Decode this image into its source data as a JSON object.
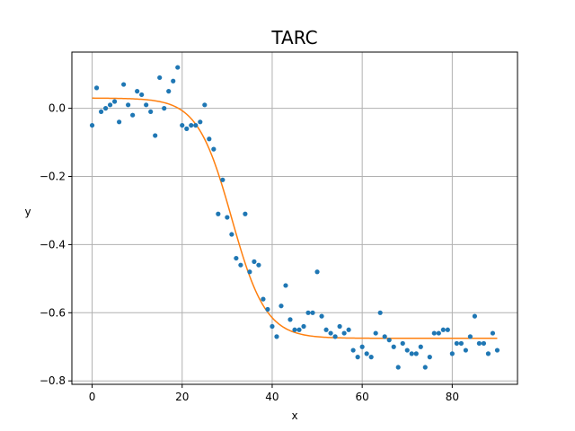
{
  "chart_data": {
    "type": "scatter",
    "title": "TARC",
    "xlabel": "x",
    "ylabel": "y",
    "xlim": [
      -4.5,
      94.5
    ],
    "ylim": [
      -0.81,
      0.165
    ],
    "xticks": [
      0,
      20,
      40,
      60,
      80
    ],
    "yticks": [
      -0.8,
      -0.6,
      -0.4,
      -0.2,
      0.0
    ],
    "xtick_labels": [
      "0",
      "20",
      "40",
      "60",
      "80"
    ],
    "ytick_labels": [
      "−0.8",
      "−0.6",
      "−0.4",
      "−0.2",
      "0.0"
    ],
    "grid": true,
    "colors": {
      "points": "#1f77b4",
      "fit": "#ff7f0e",
      "grid": "#b0b0b0"
    },
    "series": [
      {
        "kind": "points",
        "x": [
          0,
          1,
          2,
          3,
          4,
          5,
          6,
          7,
          8,
          9,
          10,
          11,
          12,
          13,
          14,
          15,
          16,
          17,
          18,
          19,
          20,
          21,
          22,
          23,
          24,
          25,
          26,
          27,
          28,
          29,
          30,
          31,
          32,
          33,
          34,
          35,
          36,
          37,
          38,
          39,
          40,
          41,
          42,
          43,
          44,
          45,
          46,
          47,
          48,
          49,
          50,
          51,
          52,
          53,
          54,
          55,
          56,
          57,
          58,
          59,
          60,
          61,
          62,
          63,
          64,
          65,
          66,
          67,
          68,
          69,
          70,
          71,
          72,
          73,
          74,
          75,
          76,
          77,
          78,
          79,
          80,
          81,
          82,
          83,
          84,
          85,
          86,
          87,
          88,
          89,
          90
        ],
        "y": [
          -0.05,
          0.06,
          -0.01,
          0.0,
          0.01,
          0.02,
          -0.04,
          0.07,
          0.01,
          -0.02,
          0.05,
          0.04,
          0.01,
          -0.01,
          -0.08,
          0.09,
          0.0,
          0.05,
          0.08,
          0.12,
          -0.05,
          -0.06,
          -0.05,
          -0.05,
          -0.04,
          0.01,
          -0.09,
          -0.12,
          -0.31,
          -0.21,
          -0.32,
          -0.37,
          -0.44,
          -0.46,
          -0.31,
          -0.48,
          -0.45,
          -0.46,
          -0.56,
          -0.59,
          -0.64,
          -0.67,
          -0.58,
          -0.52,
          -0.62,
          -0.65,
          -0.65,
          -0.64,
          -0.6,
          -0.6,
          -0.48,
          -0.61,
          -0.65,
          -0.66,
          -0.67,
          -0.64,
          -0.66,
          -0.65,
          -0.71,
          -0.73,
          -0.7,
          -0.72,
          -0.73,
          -0.66,
          -0.6,
          -0.67,
          -0.68,
          -0.7,
          -0.76,
          -0.69,
          -0.71,
          -0.72,
          -0.72,
          -0.7,
          -0.76,
          -0.73,
          -0.66,
          -0.66,
          -0.65,
          -0.65,
          -0.72,
          -0.69,
          -0.69,
          -0.71,
          -0.67,
          -0.61,
          -0.69,
          -0.69,
          -0.72,
          -0.66,
          -0.71
        ]
      },
      {
        "kind": "line",
        "model": "logistic",
        "params": {
          "upper": 0.03,
          "lower": -0.675,
          "midpoint": 31.0,
          "scale": 3.8
        },
        "x_range": [
          0,
          90
        ]
      }
    ]
  }
}
